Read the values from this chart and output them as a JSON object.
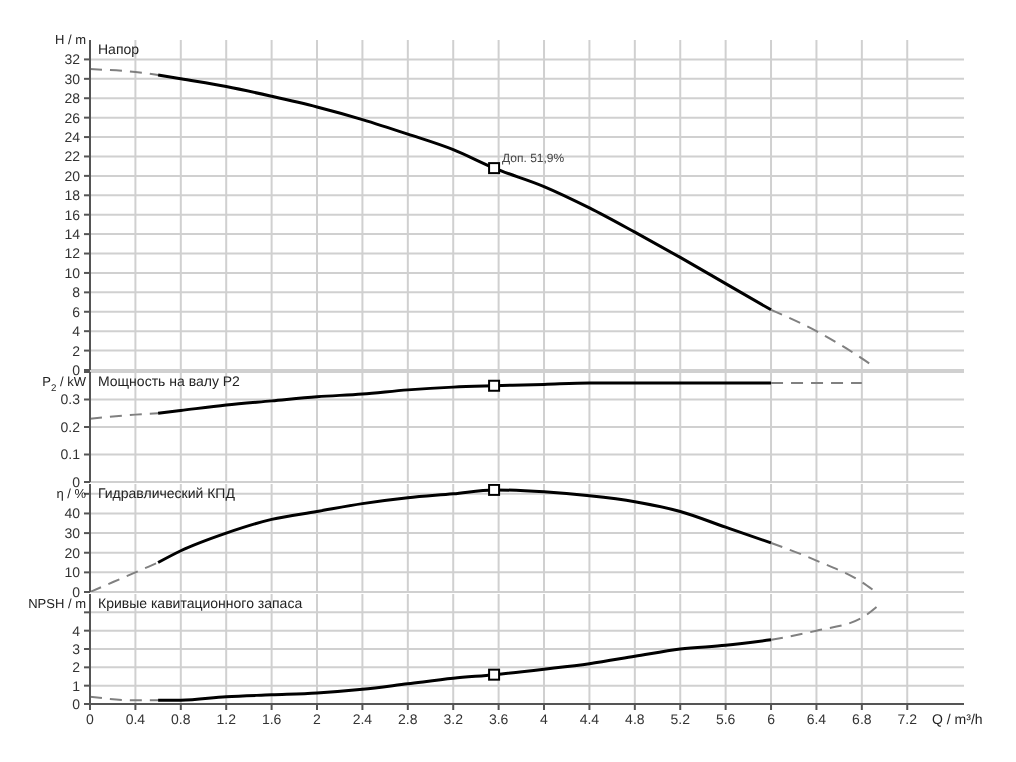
{
  "chart_data": [
    {
      "type": "line",
      "title": "Напор",
      "ylabel": "H / m",
      "xlim": [
        0,
        7.7
      ],
      "xticks": [
        0,
        0.4,
        0.8,
        1.2,
        1.6,
        2,
        2.4,
        2.8,
        3.2,
        3.6,
        4,
        4.4,
        4.8,
        5.2,
        5.6,
        6,
        6.4,
        6.8,
        7.2
      ],
      "ylim": [
        0,
        34
      ],
      "yticks": [
        0,
        2,
        4,
        6,
        8,
        10,
        12,
        14,
        16,
        18,
        20,
        22,
        24,
        26,
        28,
        30,
        32
      ],
      "grid": true,
      "tick_labels": "y",
      "annotations": [
        {
          "text": "Доп. 51,9%",
          "x": 3.56,
          "y": 20.8
        }
      ],
      "series": [
        {
          "type": "line",
          "line_style": "dashed",
          "color": "#808080",
          "x": [
            0,
            0.4,
            0.6
          ],
          "values": [
            31,
            30.7,
            30.4
          ]
        },
        {
          "type": "line",
          "line_style": "solid",
          "color": "#000000",
          "x": [
            0.6,
            0.8,
            1.2,
            1.6,
            2,
            2.4,
            2.8,
            3.2,
            3.56,
            4,
            4.4,
            4.8,
            5.2,
            5.6,
            6
          ],
          "values": [
            30.4,
            30,
            29.2,
            28.2,
            27.1,
            25.8,
            24.3,
            22.7,
            20.8,
            18.9,
            16.7,
            14.2,
            11.6,
            8.9,
            6.2
          ]
        },
        {
          "type": "line",
          "line_style": "dashed",
          "color": "#808080",
          "x": [
            6,
            6.4,
            6.8,
            6.9
          ],
          "values": [
            6.2,
            4,
            1.2,
            0.4
          ]
        },
        {
          "type": "scatter",
          "marker": "square",
          "color": "#000000",
          "x": [
            3.56
          ],
          "values": [
            20.8
          ]
        }
      ]
    },
    {
      "type": "line",
      "title": "Мощность на валу P2",
      "ylabel": "P$_{2}$ / kW",
      "xlim": [
        0,
        7.7
      ],
      "xticks": [
        0,
        0.4,
        0.8,
        1.2,
        1.6,
        2,
        2.4,
        2.8,
        3.2,
        3.6,
        4,
        4.4,
        4.8,
        5.2,
        5.6,
        6,
        6.4,
        6.8,
        7.2
      ],
      "ylim": [
        0,
        0.4
      ],
      "yticks": [
        0,
        0.1,
        0.2,
        0.3,
        {
          "value": 0.4,
          "label": null
        }
      ],
      "grid": true,
      "tick_labels": "y",
      "series": [
        {
          "type": "line",
          "line_style": "dashed",
          "color": "#808080",
          "x": [
            0,
            0.4,
            0.6
          ],
          "values": [
            0.23,
            0.245,
            0.25
          ]
        },
        {
          "type": "line",
          "line_style": "solid",
          "color": "#000000",
          "x": [
            0.6,
            0.8,
            1.2,
            1.6,
            2,
            2.4,
            2.8,
            3.2,
            3.56,
            4,
            4.4,
            4.8,
            5.2,
            5.6,
            6
          ],
          "values": [
            0.25,
            0.26,
            0.28,
            0.295,
            0.31,
            0.32,
            0.335,
            0.345,
            0.35,
            0.355,
            0.36,
            0.36,
            0.36,
            0.36,
            0.36
          ]
        },
        {
          "type": "line",
          "line_style": "dashed",
          "color": "#808080",
          "x": [
            6,
            6.4,
            6.8
          ],
          "values": [
            0.36,
            0.36,
            0.36
          ]
        },
        {
          "type": "scatter",
          "marker": "square",
          "color": "#000000",
          "x": [
            3.56
          ],
          "values": [
            0.35
          ]
        }
      ]
    },
    {
      "type": "line",
      "title": "Гидравлический КПД",
      "ylabel": "η / %",
      "xlim": [
        0,
        7.7
      ],
      "xticks": [
        0,
        0.4,
        0.8,
        1.2,
        1.6,
        2,
        2.4,
        2.8,
        3.2,
        3.6,
        4,
        4.4,
        4.8,
        5.2,
        5.6,
        6,
        6.4,
        6.8,
        7.2
      ],
      "ylim": [
        0,
        55
      ],
      "yticks": [
        0,
        10,
        20,
        30,
        40,
        {
          "value": 50,
          "label": null
        }
      ],
      "grid": true,
      "tick_labels": "y",
      "series": [
        {
          "type": "line",
          "line_style": "dashed",
          "color": "#808080",
          "x": [
            0,
            0.4,
            0.6
          ],
          "values": [
            0,
            10,
            15
          ]
        },
        {
          "type": "line",
          "line_style": "solid",
          "color": "#000000",
          "x": [
            0.6,
            0.8,
            1.2,
            1.6,
            2,
            2.4,
            2.8,
            3.2,
            3.56,
            4,
            4.4,
            4.8,
            5.2,
            5.6,
            6
          ],
          "values": [
            15,
            21,
            30,
            37,
            41,
            45,
            48,
            50,
            52,
            51,
            49,
            46,
            41,
            33,
            25
          ]
        },
        {
          "type": "line",
          "line_style": "dashed",
          "color": "#808080",
          "x": [
            6,
            6.4,
            6.8,
            6.9
          ],
          "values": [
            25,
            16,
            5,
            1
          ]
        },
        {
          "type": "scatter",
          "marker": "square",
          "color": "#000000",
          "x": [
            3.56
          ],
          "values": [
            52
          ]
        }
      ]
    },
    {
      "type": "line",
      "title": "Кривые кавитационного запаса",
      "ylabel": "NPSH / m",
      "xlabel": "Q / m³/h",
      "xlim": [
        0,
        7.7
      ],
      "xticks": [
        0,
        0.4,
        0.8,
        1.2,
        1.6,
        2,
        2.4,
        2.8,
        3.2,
        3.6,
        4,
        4.4,
        4.8,
        5.2,
        5.6,
        6,
        6.4,
        6.8,
        7.2
      ],
      "ylim": [
        0,
        6
      ],
      "yticks": [
        0,
        1,
        2,
        3,
        4,
        {
          "value": 5,
          "label": null
        }
      ],
      "grid": true,
      "series": [
        {
          "type": "line",
          "line_style": "dashed",
          "color": "#808080",
          "x": [
            0,
            0.4,
            0.6
          ],
          "values": [
            0.4,
            0.2,
            0.2
          ]
        },
        {
          "type": "line",
          "line_style": "solid",
          "color": "#000000",
          "x": [
            0.6,
            0.8,
            1.2,
            1.6,
            2,
            2.4,
            2.8,
            3.2,
            3.56,
            4,
            4.4,
            4.8,
            5.2,
            5.6,
            6
          ],
          "values": [
            0.2,
            0.2,
            0.4,
            0.5,
            0.6,
            0.8,
            1.1,
            1.4,
            1.6,
            1.9,
            2.2,
            2.6,
            3,
            3.2,
            3.5
          ]
        },
        {
          "type": "line",
          "line_style": "dashed",
          "color": "#808080",
          "x": [
            6,
            6.4,
            6.8,
            6.95
          ],
          "values": [
            3.5,
            4,
            4.7,
            5.4
          ]
        },
        {
          "type": "scatter",
          "marker": "square",
          "color": "#000000",
          "x": [
            3.56
          ],
          "values": [
            1.6
          ]
        }
      ]
    }
  ]
}
